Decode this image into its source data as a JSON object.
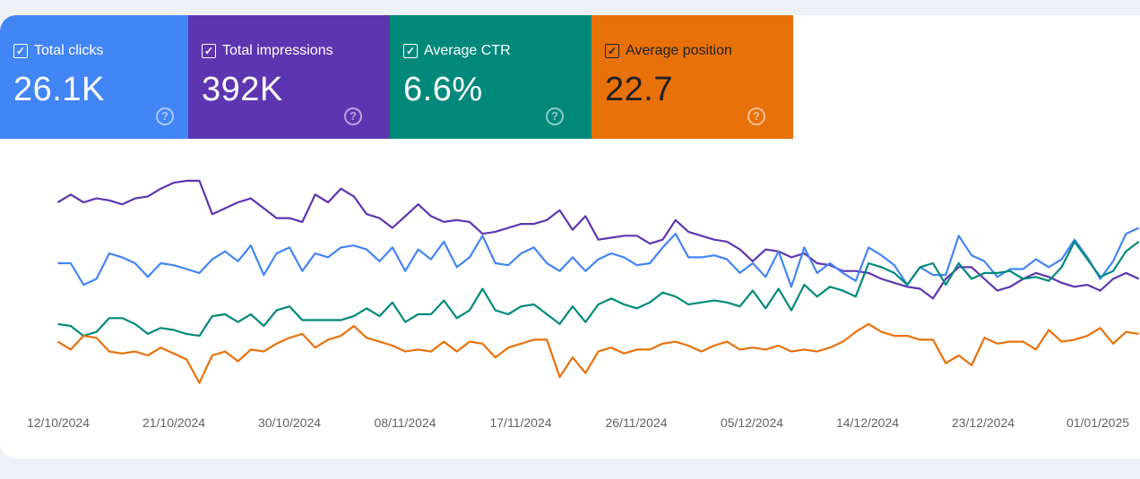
{
  "cards": [
    {
      "label": "Total clicks",
      "value": "26.1K",
      "color": "#4285f4",
      "text_color": "#ffffff",
      "checked": true,
      "icon": "help-icon"
    },
    {
      "label": "Total impressions",
      "value": "392K",
      "color": "#5e35b1",
      "text_color": "#ffffff",
      "checked": true,
      "icon": "help-icon"
    },
    {
      "label": "Average CTR",
      "value": "6.6%",
      "color": "#00897b",
      "text_color": "#ffffff",
      "checked": true,
      "icon": "help-icon"
    },
    {
      "label": "Average position",
      "value": "22.7",
      "color": "#e8710a",
      "text_color": "#202124",
      "checked": true,
      "icon": "help-icon"
    }
  ],
  "chart_data": {
    "type": "line",
    "title": "",
    "xlabel": "",
    "ylabel": "",
    "note_scale": "relative",
    "ylim": [
      -20,
      100
    ],
    "grid": false,
    "x_tick_labels": [
      "12/10/2024",
      "21/10/2024",
      "30/10/2024",
      "08/11/2024",
      "17/11/2024",
      "26/11/2024",
      "05/12/2024",
      "14/12/2024",
      "23/12/2024",
      "01/01/2025"
    ],
    "series": [
      {
        "name": "Total impressions",
        "color": "#5e35b1",
        "values": [
          79,
          83,
          79,
          81,
          80,
          78,
          81,
          82,
          86,
          89,
          90,
          90,
          73,
          76,
          79,
          81,
          76,
          71,
          71,
          69,
          83,
          79,
          86,
          82,
          73,
          71,
          66,
          72,
          78,
          72,
          69,
          70,
          69,
          63,
          64,
          66,
          68,
          68,
          70,
          75,
          65,
          72,
          60,
          61,
          62,
          62,
          58,
          60,
          70,
          64,
          62,
          60,
          59,
          55,
          49,
          55,
          54,
          51,
          53,
          48,
          47,
          44,
          44,
          43,
          40,
          38,
          36,
          35,
          30,
          40,
          46,
          46,
          40,
          34,
          36,
          40,
          43,
          41,
          38,
          36,
          37,
          34,
          40,
          43,
          40
        ]
      },
      {
        "name": "Total clicks",
        "color": "#4285f4",
        "values": [
          48,
          48,
          37,
          40,
          53,
          51,
          48,
          41,
          48,
          47,
          45,
          43,
          50,
          54,
          49,
          57,
          42,
          53,
          56,
          44,
          53,
          51,
          56,
          57,
          55,
          49,
          56,
          44,
          55,
          50,
          59,
          46,
          51,
          62,
          48,
          47,
          53,
          56,
          48,
          44,
          51,
          44,
          50,
          53,
          51,
          47,
          48,
          56,
          63,
          51,
          51,
          52,
          50,
          43,
          48,
          41,
          54,
          36,
          56,
          43,
          48,
          43,
          39,
          56,
          52,
          47,
          37,
          46,
          42,
          42,
          62,
          52,
          49,
          41,
          45,
          45,
          50,
          46,
          50,
          60,
          51,
          40,
          49,
          63,
          66
        ]
      },
      {
        "name": "Average CTR",
        "color": "#00897b",
        "values": [
          17,
          16,
          11,
          13,
          20,
          20,
          17,
          12,
          15,
          14,
          12,
          11,
          21,
          22,
          18,
          22,
          16,
          24,
          26,
          19,
          19,
          19,
          19,
          21,
          25,
          21,
          28,
          18,
          22,
          22,
          29,
          20,
          24,
          35,
          24,
          22,
          26,
          27,
          22,
          17,
          26,
          18,
          27,
          30,
          27,
          25,
          28,
          33,
          31,
          27,
          28,
          29,
          28,
          26,
          34,
          25,
          35,
          24,
          37,
          31,
          36,
          34,
          31,
          48,
          46,
          43,
          37,
          46,
          48,
          37,
          48,
          40,
          43,
          43,
          44,
          40,
          41,
          39,
          46,
          59,
          50,
          41,
          44,
          54,
          59
        ]
      },
      {
        "name": "Average position",
        "color": "#e8710a",
        "values": [
          8,
          4,
          11,
          10,
          3,
          2,
          3,
          1,
          5,
          2,
          -1,
          -13,
          1,
          3,
          -2,
          4,
          3,
          7,
          10,
          12,
          5,
          9,
          11,
          16,
          10,
          8,
          6,
          3,
          4,
          3,
          8,
          3,
          8,
          7,
          0,
          5,
          7,
          9,
          9,
          -10,
          0,
          -8,
          3,
          5,
          2,
          4,
          4,
          7,
          8,
          6,
          3,
          6,
          8,
          4,
          5,
          4,
          6,
          3,
          4,
          3,
          5,
          8,
          13,
          17,
          13,
          11,
          11,
          9,
          9,
          -3,
          1,
          -4,
          10,
          7,
          8,
          8,
          4,
          14,
          8,
          9,
          11,
          15,
          7,
          13,
          12
        ]
      }
    ]
  }
}
